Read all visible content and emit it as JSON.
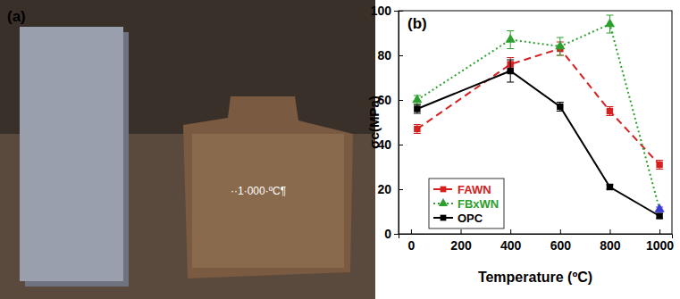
{
  "panel_a": {
    "label": "(a)",
    "annotation": "··1·000·ºC¶"
  },
  "chart_data": {
    "type": "line",
    "panel_label": "(b)",
    "x_label": "Temperature (ºC)",
    "y_label": "σc(MPa)",
    "x": [
      25,
      400,
      600,
      800,
      1000
    ],
    "series": [
      {
        "name": "FAWN",
        "color": "#d62020",
        "marker": "square",
        "line_style": "dashed",
        "values": [
          47,
          76,
          83,
          55,
          31
        ],
        "errors": [
          2,
          3,
          3,
          2,
          2
        ]
      },
      {
        "name": "FBxWN",
        "color": "#2ca02c",
        "marker": "triangle",
        "line_style": "dotted",
        "colors": [
          "#2ca02c",
          "#2ca02c",
          "#2ca02c",
          "#2ca02c",
          "#3b3bd6"
        ],
        "values": [
          60,
          87,
          84,
          94,
          11
        ],
        "errors": [
          2,
          4,
          4,
          4,
          1
        ]
      },
      {
        "name": "OPC",
        "color": "#000000",
        "marker": "square",
        "line_style": "solid",
        "values": [
          56,
          73,
          57,
          21,
          8
        ],
        "errors": [
          2,
          5,
          2,
          1,
          1
        ]
      }
    ],
    "xlim": [
      -50,
      1050
    ],
    "xticks": [
      0,
      200,
      400,
      600,
      800,
      1000
    ],
    "ylim": [
      0,
      100
    ],
    "yticks": [
      0,
      20,
      40,
      60,
      80,
      100
    ],
    "legend": "lower left"
  }
}
